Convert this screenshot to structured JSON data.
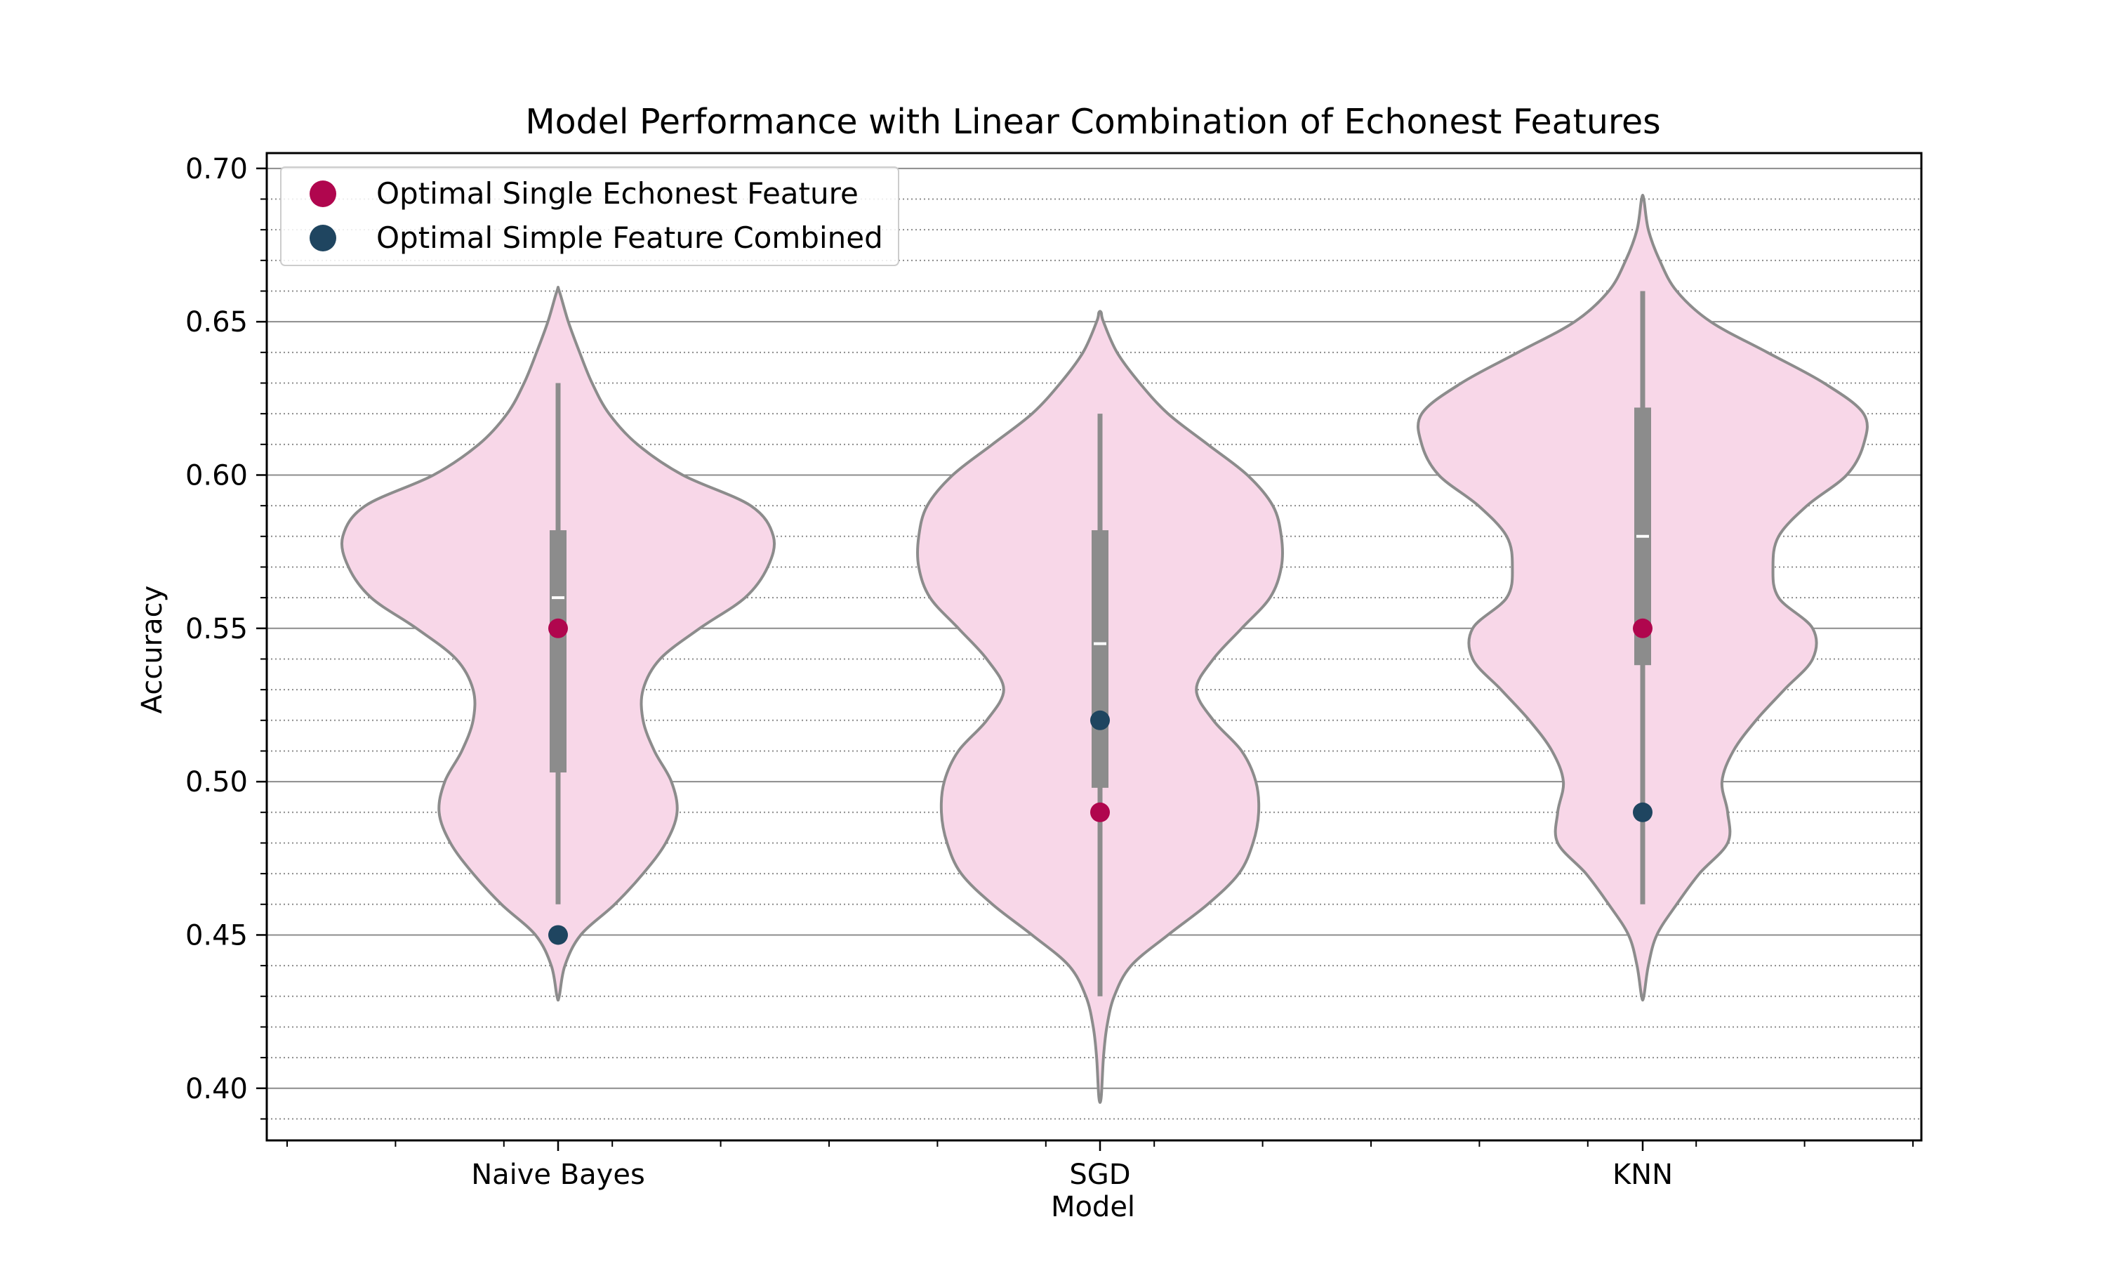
{
  "colors": {
    "violin_fill": "#f8d7e8",
    "violin_edge": "#8c8c8c",
    "box": "#8c8c8c",
    "median": "#ffffff",
    "single_feature": "#b0064e",
    "combined_feature": "#1f4560",
    "grid_major": "#8c8c8c",
    "grid_minor": "#8c8c8c"
  },
  "chart_data": {
    "type": "violin",
    "title": "Model Performance with Linear Combination of Echonest Features",
    "xlabel": "Model",
    "ylabel": "Accuracy",
    "ylim": [
      0.383,
      0.705
    ],
    "yticks": [
      0.4,
      0.45,
      0.5,
      0.55,
      0.6,
      0.65,
      0.7
    ],
    "ytick_labels": [
      "0.40",
      "0.45",
      "0.50",
      "0.55",
      "0.60",
      "0.65",
      "0.70"
    ],
    "grid": "horizontal major solid, minor dotted every 0.01",
    "legend_position": "upper-left",
    "categories": [
      "Naive Bayes",
      "SGD",
      "KNN"
    ],
    "violins": [
      {
        "category": "Naive Bayes",
        "min": 0.43,
        "max": 0.66,
        "q1": 0.503,
        "median": 0.56,
        "q3": 0.582,
        "whisker_low": 0.46,
        "whisker_high": 0.63,
        "profile": [
          [
            0.43,
            0.002
          ],
          [
            0.44,
            0.012
          ],
          [
            0.45,
            0.04
          ],
          [
            0.46,
            0.1
          ],
          [
            0.47,
            0.15
          ],
          [
            0.48,
            0.19
          ],
          [
            0.49,
            0.21
          ],
          [
            0.5,
            0.2
          ],
          [
            0.51,
            0.17
          ],
          [
            0.52,
            0.15
          ],
          [
            0.53,
            0.15
          ],
          [
            0.54,
            0.18
          ],
          [
            0.55,
            0.25
          ],
          [
            0.56,
            0.33
          ],
          [
            0.57,
            0.37
          ],
          [
            0.58,
            0.38
          ],
          [
            0.59,
            0.34
          ],
          [
            0.6,
            0.22
          ],
          [
            0.61,
            0.14
          ],
          [
            0.62,
            0.09
          ],
          [
            0.63,
            0.06
          ],
          [
            0.64,
            0.038
          ],
          [
            0.65,
            0.018
          ],
          [
            0.66,
            0.002
          ]
        ]
      },
      {
        "category": "SGD",
        "min": 0.397,
        "max": 0.653,
        "q1": 0.498,
        "median": 0.545,
        "q3": 0.582,
        "whisker_low": 0.43,
        "whisker_high": 0.62,
        "profile": [
          [
            0.397,
            0.002
          ],
          [
            0.41,
            0.006
          ],
          [
            0.42,
            0.012
          ],
          [
            0.43,
            0.025
          ],
          [
            0.44,
            0.055
          ],
          [
            0.45,
            0.12
          ],
          [
            0.46,
            0.19
          ],
          [
            0.47,
            0.245
          ],
          [
            0.48,
            0.27
          ],
          [
            0.49,
            0.28
          ],
          [
            0.5,
            0.275
          ],
          [
            0.51,
            0.25
          ],
          [
            0.52,
            0.2
          ],
          [
            0.53,
            0.17
          ],
          [
            0.54,
            0.2
          ],
          [
            0.55,
            0.25
          ],
          [
            0.56,
            0.3
          ],
          [
            0.57,
            0.32
          ],
          [
            0.58,
            0.32
          ],
          [
            0.59,
            0.305
          ],
          [
            0.6,
            0.26
          ],
          [
            0.61,
            0.19
          ],
          [
            0.62,
            0.12
          ],
          [
            0.63,
            0.07
          ],
          [
            0.64,
            0.03
          ],
          [
            0.65,
            0.006
          ],
          [
            0.653,
            0.002
          ]
        ]
      },
      {
        "category": "KNN",
        "min": 0.43,
        "max": 0.69,
        "q1": 0.538,
        "median": 0.58,
        "q3": 0.622,
        "whisker_low": 0.46,
        "whisker_high": 0.66,
        "profile": [
          [
            0.43,
            0.002
          ],
          [
            0.44,
            0.01
          ],
          [
            0.45,
            0.025
          ],
          [
            0.46,
            0.06
          ],
          [
            0.47,
            0.1
          ],
          [
            0.48,
            0.15
          ],
          [
            0.49,
            0.15
          ],
          [
            0.5,
            0.14
          ],
          [
            0.51,
            0.16
          ],
          [
            0.52,
            0.2
          ],
          [
            0.53,
            0.25
          ],
          [
            0.54,
            0.3
          ],
          [
            0.55,
            0.3
          ],
          [
            0.56,
            0.24
          ],
          [
            0.57,
            0.23
          ],
          [
            0.58,
            0.24
          ],
          [
            0.59,
            0.29
          ],
          [
            0.6,
            0.36
          ],
          [
            0.61,
            0.39
          ],
          [
            0.62,
            0.39
          ],
          [
            0.63,
            0.32
          ],
          [
            0.64,
            0.22
          ],
          [
            0.65,
            0.12
          ],
          [
            0.66,
            0.06
          ],
          [
            0.67,
            0.03
          ],
          [
            0.68,
            0.01
          ],
          [
            0.69,
            0.002
          ]
        ]
      }
    ],
    "series": [
      {
        "name": "Optimal Single Echonest Feature",
        "values": [
          0.55,
          0.49,
          0.55
        ],
        "color": "#b0064e"
      },
      {
        "name": "Optimal Simple Feature Combined",
        "values": [
          0.45,
          0.52,
          0.49
        ],
        "color": "#1f4560"
      }
    ]
  }
}
